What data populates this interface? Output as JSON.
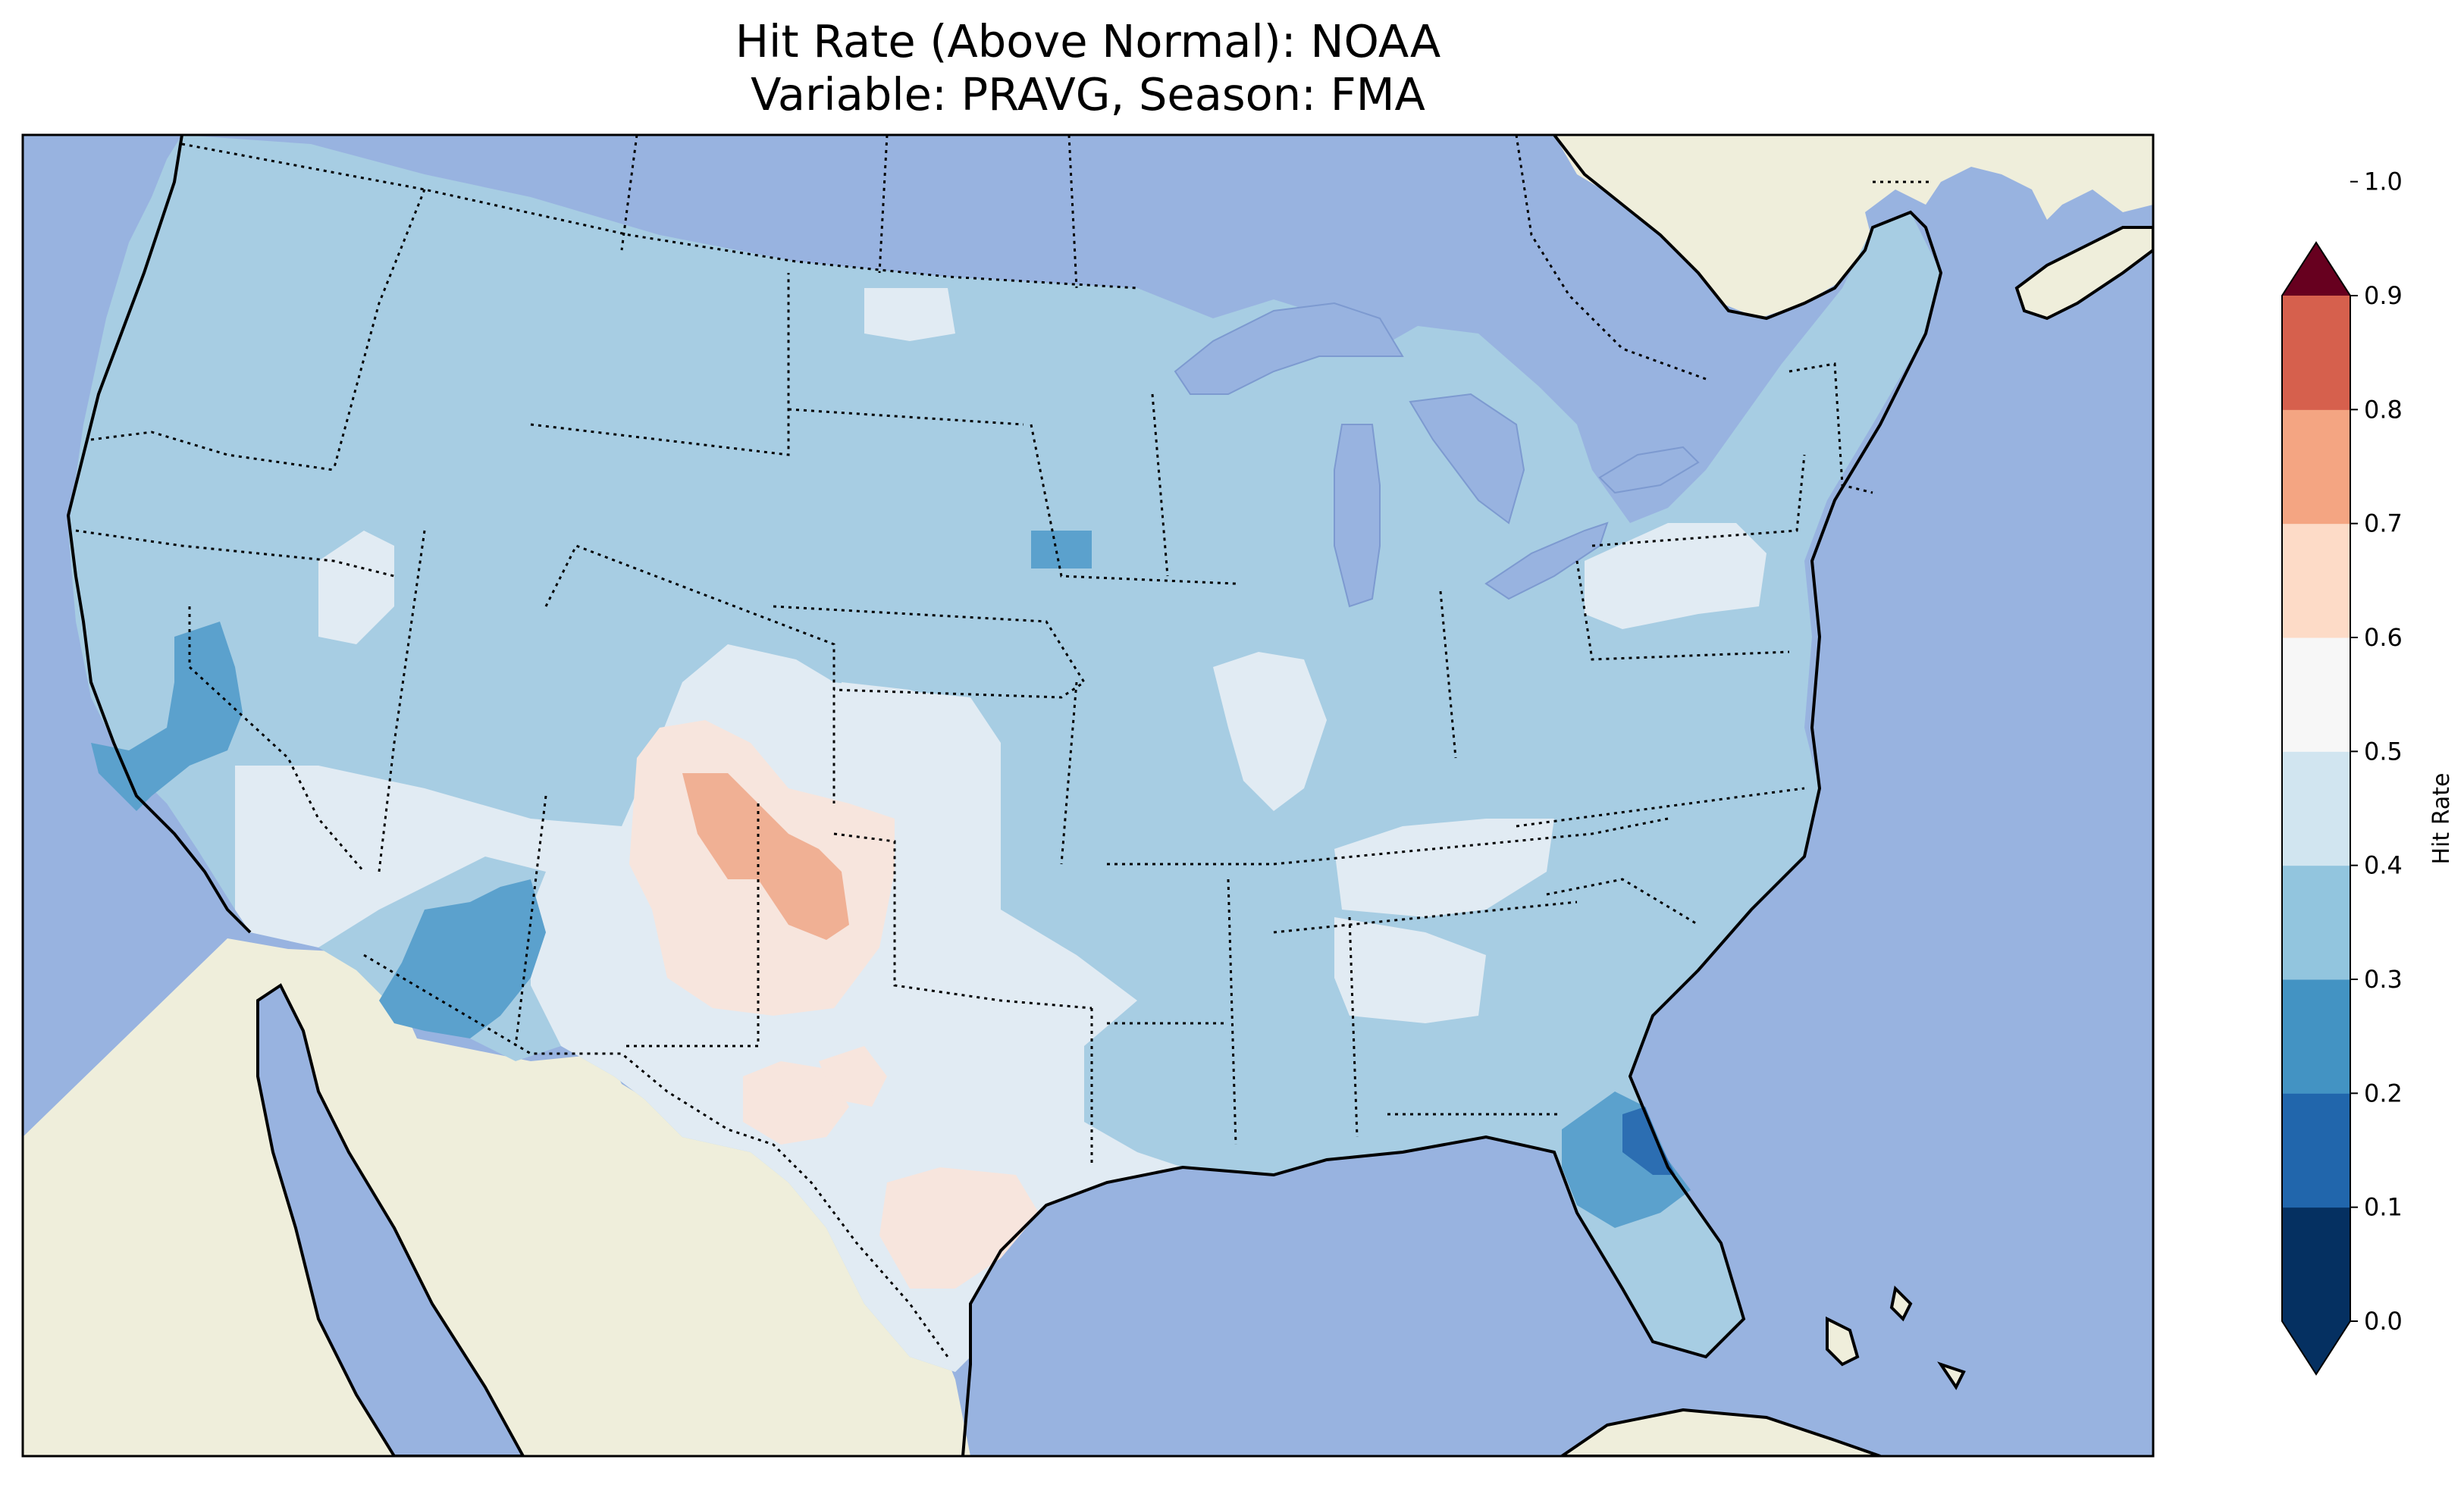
{
  "title": {
    "line1": "Hit Rate (Above Normal): NOAA",
    "line2": "Variable: PRAVG, Season: FMA"
  },
  "colors": {
    "ocean": "#98b3e0",
    "lakes": "#98b3e0",
    "land": "#efeedb",
    "coastline": "#000000",
    "borders": "#000000"
  },
  "map": {
    "region": "Continental United States",
    "features": [
      "coastlines",
      "state borders",
      "country borders",
      "lakes"
    ],
    "border_style": "dotted"
  },
  "colorbar": {
    "label": "Hit Rate",
    "ticks": [
      "0.0",
      "0.1",
      "0.2",
      "0.3",
      "0.4",
      "0.5",
      "0.6",
      "0.7",
      "0.8",
      "0.9",
      "1.0"
    ],
    "colors": [
      "#053061",
      "#2166ac",
      "#4393c3",
      "#92c5de",
      "#d1e5f0",
      "#f7f7f7",
      "#fddbc7",
      "#f4a582",
      "#d6604d",
      "#b2182b",
      "#67001f"
    ],
    "extend": "both"
  },
  "chart_data": {
    "type": "heatmap",
    "title": "Hit Rate (Above Normal): NOAA",
    "subtitle": "Variable: PRAVG, Season: FMA",
    "colorbar_label": "Hit Rate",
    "vmin": 0.0,
    "vmax": 1.0,
    "levels": [
      0.0,
      0.1,
      0.2,
      0.3,
      0.4,
      0.5,
      0.6,
      0.7,
      0.8,
      0.9,
      1.0
    ],
    "regions": [
      {
        "area": "most of CONUS",
        "range": [
          0.3,
          0.4
        ]
      },
      {
        "area": "Colorado / New Mexico border",
        "range": [
          0.6,
          0.7
        ]
      },
      {
        "area": "Texas / New Mexico / SW Colorado",
        "range": [
          0.5,
          0.6
        ]
      },
      {
        "area": "Texas / southern Plains / Tennessee Valley",
        "range": [
          0.4,
          0.5
        ]
      },
      {
        "area": "Arizona",
        "range": [
          0.2,
          0.3
        ]
      },
      {
        "area": "Central California",
        "range": [
          0.2,
          0.3
        ]
      },
      {
        "area": "Southern Minnesota",
        "range": [
          0.2,
          0.3
        ]
      },
      {
        "area": "Northeast Florida",
        "range": [
          0.1,
          0.2
        ]
      }
    ]
  }
}
